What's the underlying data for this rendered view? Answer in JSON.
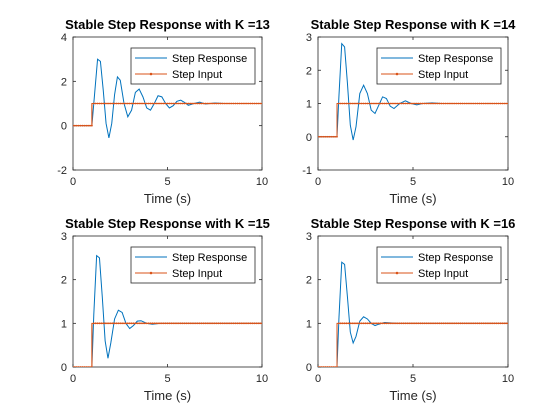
{
  "colors": {
    "response": "#0072BD",
    "input": "#D95319",
    "axes": "#262626",
    "background": "#ffffff"
  },
  "chart_data": [
    {
      "type": "line",
      "title": "Stable Step Response with K =13",
      "xlabel": "Time (s)",
      "ylabel": "",
      "xlim": [
        0,
        10
      ],
      "ylim": [
        -2,
        4
      ],
      "xticks": [
        0,
        5,
        10
      ],
      "yticks": [
        -2,
        0,
        2,
        4
      ],
      "grid": false,
      "legend_placement": "top-right",
      "series": [
        {
          "name": "Step Response",
          "x": [
            0,
            1.0,
            1.15,
            1.3,
            1.45,
            1.6,
            1.75,
            1.9,
            2.05,
            2.2,
            2.35,
            2.5,
            2.7,
            2.9,
            3.1,
            3.3,
            3.5,
            3.7,
            3.9,
            4.1,
            4.3,
            4.5,
            4.7,
            4.9,
            5.1,
            5.3,
            5.5,
            5.7,
            5.9,
            6.1,
            6.4,
            6.7,
            7.0,
            7.5,
            8.0,
            9.0,
            10.0
          ],
          "y": [
            0,
            0,
            1.5,
            3.0,
            2.9,
            1.6,
            0.1,
            -0.55,
            0.1,
            1.4,
            2.2,
            2.05,
            1.0,
            0.4,
            0.7,
            1.5,
            1.65,
            1.3,
            0.8,
            0.7,
            1.0,
            1.35,
            1.3,
            1.0,
            0.8,
            0.9,
            1.1,
            1.15,
            1.05,
            0.92,
            1.0,
            1.06,
            0.98,
            1.02,
            1.0,
            1.0,
            1.0
          ]
        },
        {
          "name": "Step Input",
          "x": [
            0,
            1.0,
            1.0,
            10.0
          ],
          "y": [
            0,
            0,
            1,
            1
          ]
        }
      ]
    },
    {
      "type": "line",
      "title": "Stable Step Response with K =14",
      "xlabel": "Time (s)",
      "ylabel": "",
      "xlim": [
        0,
        10
      ],
      "ylim": [
        -1,
        3
      ],
      "xticks": [
        0,
        5,
        10
      ],
      "yticks": [
        -1,
        0,
        1,
        2,
        3
      ],
      "grid": false,
      "legend_placement": "top-right",
      "series": [
        {
          "name": "Step Response",
          "x": [
            0,
            1.0,
            1.1,
            1.25,
            1.4,
            1.55,
            1.7,
            1.85,
            2.0,
            2.2,
            2.4,
            2.6,
            2.8,
            3.0,
            3.2,
            3.4,
            3.6,
            3.8,
            4.0,
            4.3,
            4.6,
            4.9,
            5.2,
            5.5,
            6.0,
            6.5,
            7.0,
            8.0,
            10.0
          ],
          "y": [
            0,
            0,
            1.2,
            2.8,
            2.7,
            1.6,
            0.35,
            -0.1,
            0.3,
            1.3,
            1.55,
            1.3,
            0.8,
            0.7,
            0.95,
            1.2,
            1.15,
            0.92,
            0.85,
            1.0,
            1.08,
            1.0,
            0.96,
            1.0,
            1.02,
            1.0,
            1.0,
            1.0,
            1.0
          ]
        },
        {
          "name": "Step Input",
          "x": [
            0,
            1.0,
            1.0,
            10.0
          ],
          "y": [
            0,
            0,
            1,
            1
          ]
        }
      ]
    },
    {
      "type": "line",
      "title": "Stable Step Response with K =15",
      "xlabel": "Time (s)",
      "ylabel": "",
      "xlim": [
        0,
        10
      ],
      "ylim": [
        0,
        3
      ],
      "xticks": [
        0,
        5,
        10
      ],
      "yticks": [
        0,
        1,
        2,
        3
      ],
      "grid": false,
      "legend_placement": "top-right",
      "series": [
        {
          "name": "Step Response",
          "x": [
            0,
            1.0,
            1.1,
            1.25,
            1.4,
            1.55,
            1.7,
            1.85,
            2.0,
            2.2,
            2.4,
            2.6,
            2.8,
            3.0,
            3.2,
            3.4,
            3.6,
            3.9,
            4.2,
            4.6,
            5.0,
            6.0,
            7.0,
            10.0
          ],
          "y": [
            0,
            0,
            1.2,
            2.55,
            2.5,
            1.6,
            0.6,
            0.2,
            0.55,
            1.1,
            1.3,
            1.25,
            1.0,
            0.88,
            0.95,
            1.05,
            1.06,
            1.0,
            0.98,
            1.0,
            1.0,
            1.0,
            1.0,
            1.0
          ]
        },
        {
          "name": "Step Input",
          "x": [
            0,
            1.0,
            1.0,
            10.0
          ],
          "y": [
            0,
            0,
            1,
            1
          ]
        }
      ]
    },
    {
      "type": "line",
      "title": "Stable Step Response with K =16",
      "xlabel": "Time (s)",
      "ylabel": "",
      "xlim": [
        0,
        10
      ],
      "ylim": [
        0,
        3
      ],
      "xticks": [
        0,
        5,
        10
      ],
      "yticks": [
        0,
        1,
        2,
        3
      ],
      "grid": false,
      "legend_placement": "top-right",
      "series": [
        {
          "name": "Step Response",
          "x": [
            0,
            1.0,
            1.1,
            1.25,
            1.4,
            1.55,
            1.7,
            1.85,
            2.0,
            2.2,
            2.4,
            2.6,
            2.8,
            3.0,
            3.2,
            3.5,
            3.8,
            4.2,
            4.6,
            5.0,
            6.0,
            10.0
          ],
          "y": [
            0,
            0,
            1.1,
            2.4,
            2.35,
            1.6,
            0.8,
            0.55,
            0.7,
            1.05,
            1.15,
            1.1,
            1.0,
            0.95,
            0.98,
            1.02,
            1.01,
            1.0,
            1.0,
            1.0,
            1.0,
            1.0
          ]
        },
        {
          "name": "Step Input",
          "x": [
            0,
            1.0,
            1.0,
            10.0
          ],
          "y": [
            0,
            0,
            1,
            1
          ]
        }
      ]
    }
  ]
}
